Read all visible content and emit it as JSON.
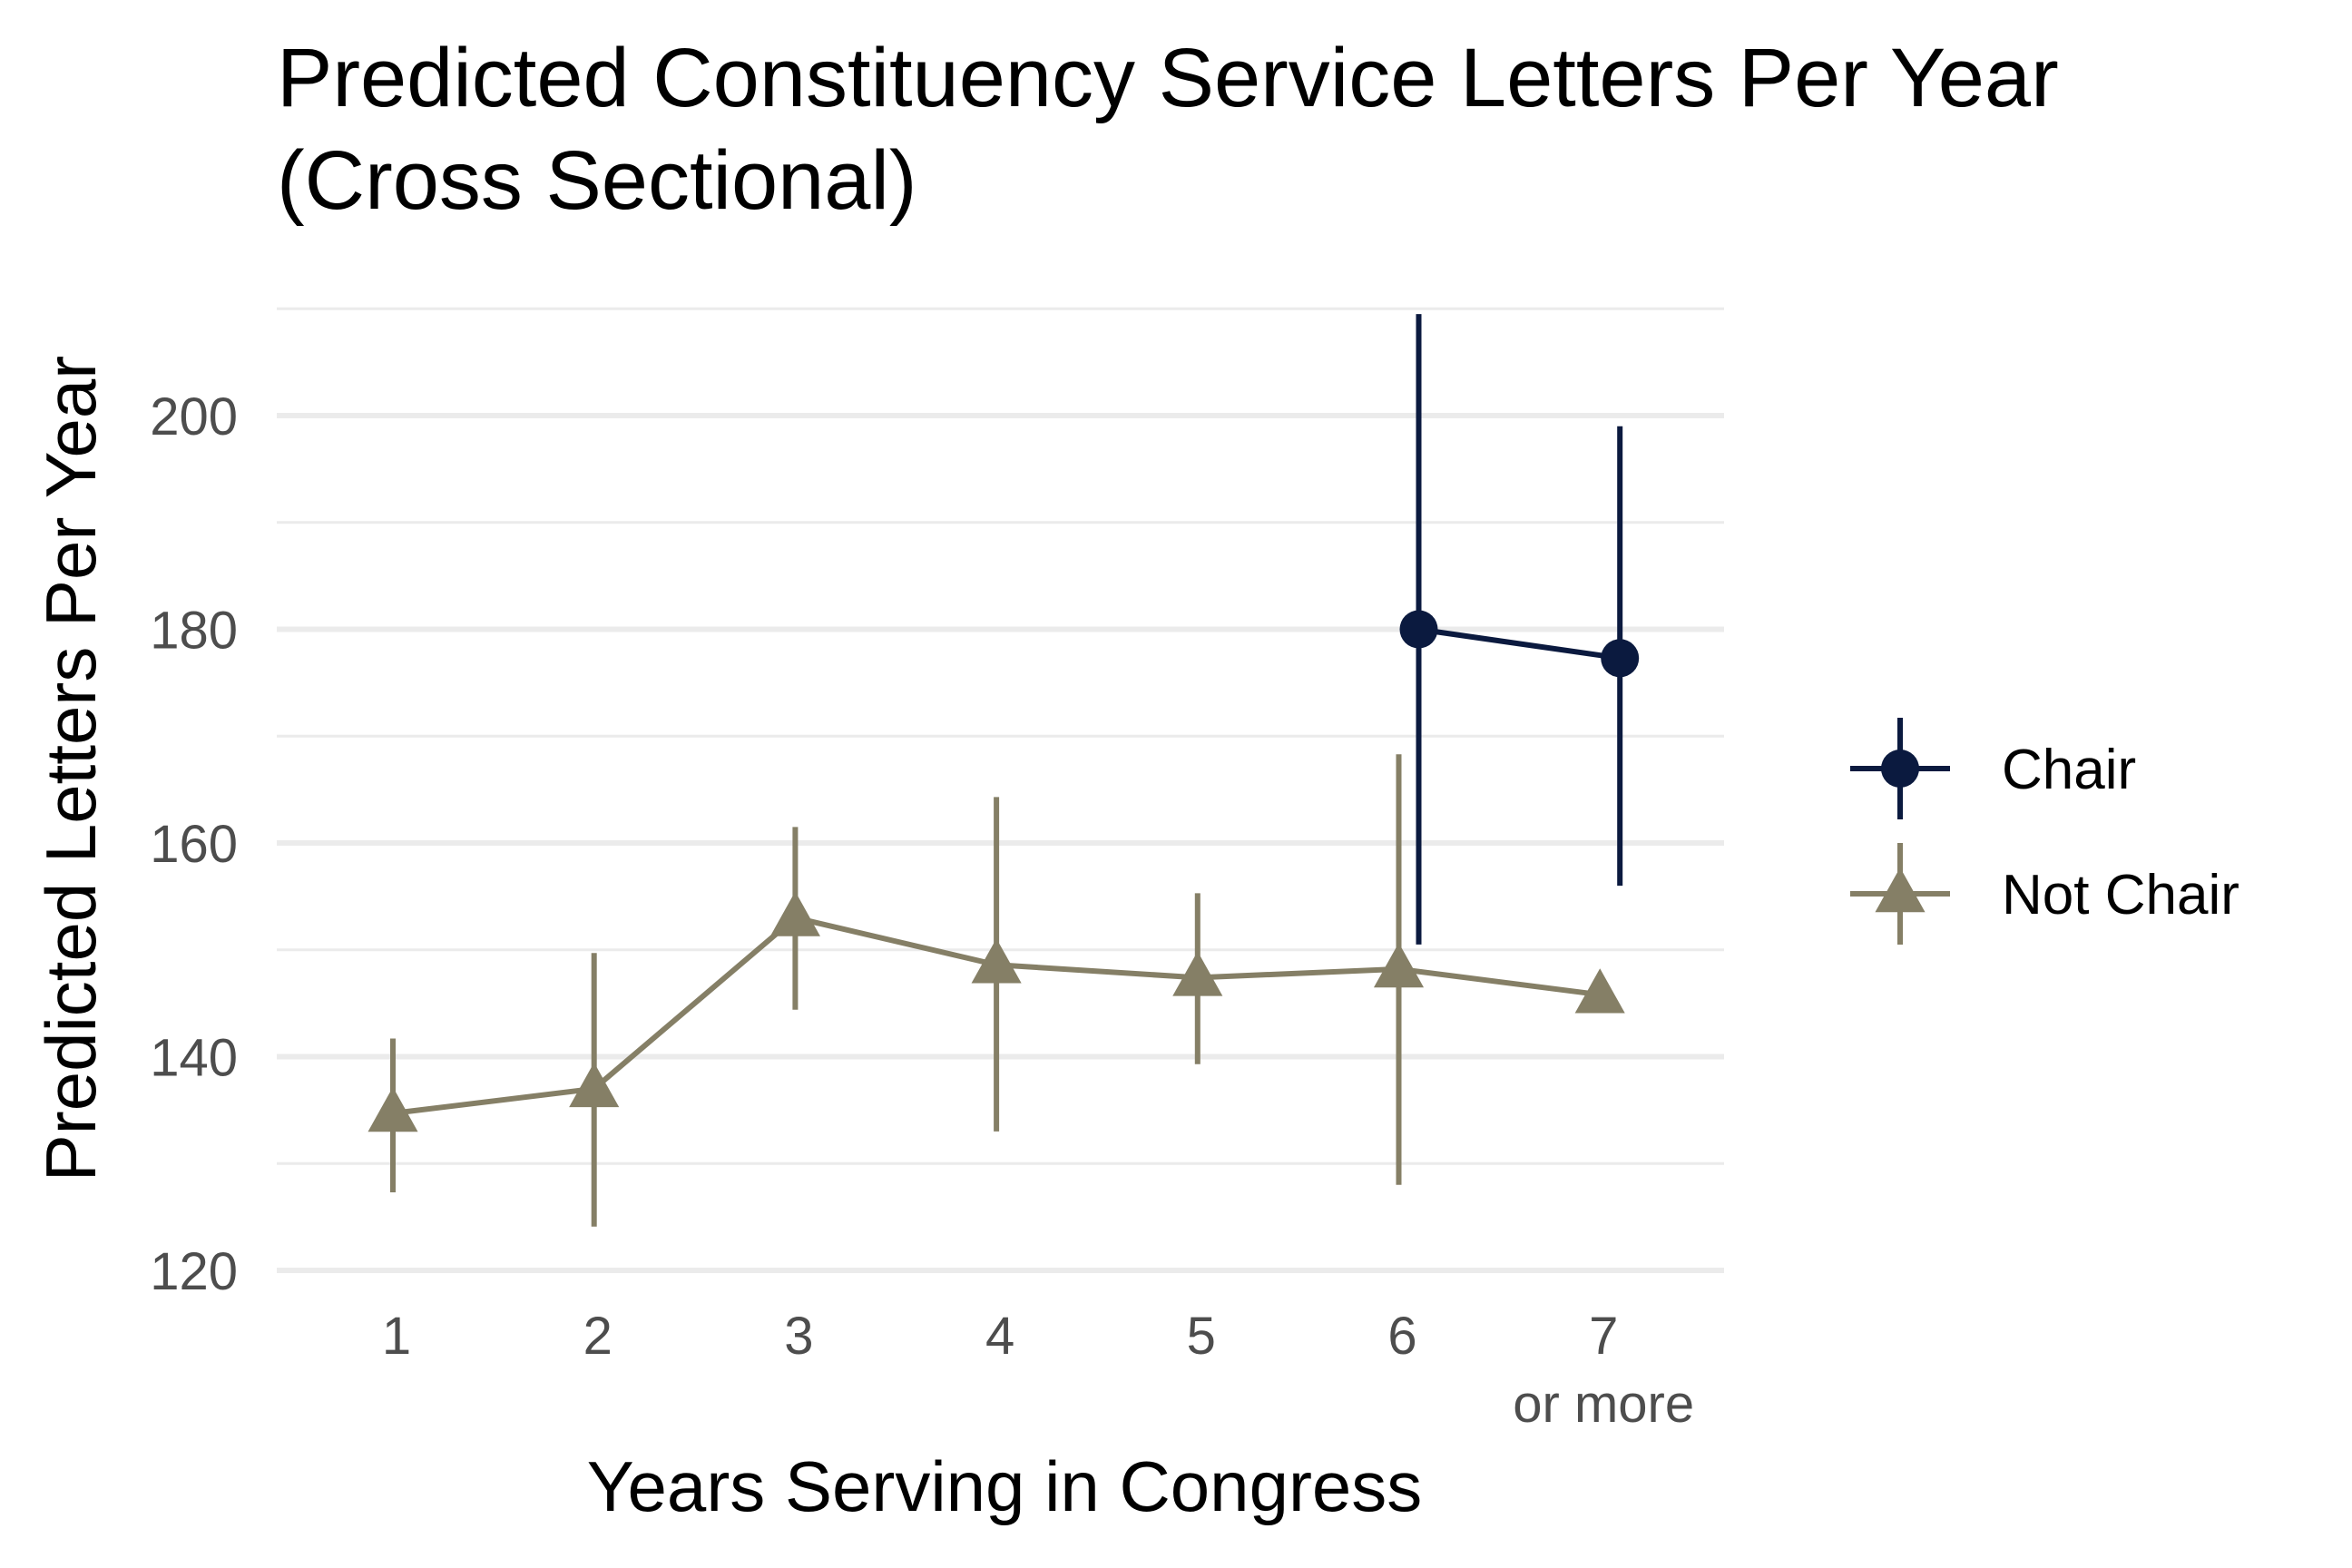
{
  "chart_data": {
    "type": "line",
    "title_line1": "Predicted Constituency Service Letters Per Year",
    "title_line2": "(Cross Sectional)",
    "xlabel": "Years Serving in Congress",
    "ylabel": "Predicted Letters Per Year",
    "categories": [
      "1",
      "2",
      "3",
      "4",
      "5",
      "6",
      "7"
    ],
    "category_sublabels": [
      "",
      "",
      "",
      "",
      "",
      "",
      "or more"
    ],
    "ylim": [
      118,
      210
    ],
    "yticks": [
      120,
      140,
      160,
      180,
      200
    ],
    "grid": true,
    "legend_position": "right",
    "series": [
      {
        "name": "Chair",
        "color": "#0b1a3f",
        "marker": "circle",
        "x": [
          6,
          7
        ],
        "values": [
          180,
          177.3
        ],
        "lower": [
          150.5,
          156
        ],
        "upper": [
          209.5,
          199
        ]
      },
      {
        "name": "Not Chair",
        "color": "#857f66",
        "marker": "triangle",
        "x": [
          1,
          2,
          3,
          4,
          5,
          6,
          7
        ],
        "values": [
          134.7,
          137,
          153,
          148.6,
          147.4,
          148.2,
          145.8
        ],
        "lower": [
          127.3,
          124.1,
          144.4,
          133,
          139.3,
          128,
          null
        ],
        "upper": [
          141.7,
          149.7,
          161.5,
          164.3,
          155.3,
          168.3,
          null
        ]
      }
    ]
  }
}
